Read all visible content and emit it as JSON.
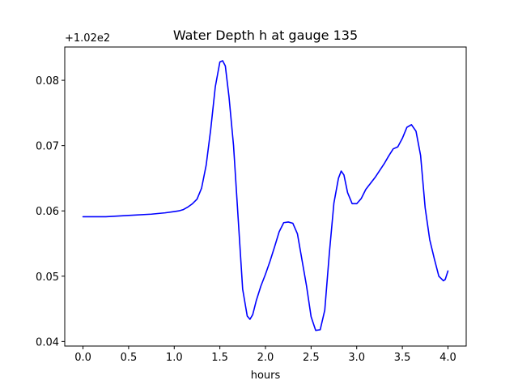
{
  "chart_data": {
    "type": "line",
    "title": "Water Depth h at gauge 135",
    "xlabel": "hours",
    "ylabel": "",
    "offset_label": "+1.02e2",
    "xlim": [
      -0.2,
      4.2
    ],
    "ylim": [
      0.0393,
      0.0851
    ],
    "x_ticks": [
      0.0,
      0.5,
      1.0,
      1.5,
      2.0,
      2.5,
      3.0,
      3.5,
      4.0
    ],
    "x_tick_labels": [
      "0.0",
      "0.5",
      "1.0",
      "1.5",
      "2.0",
      "2.5",
      "3.0",
      "3.5",
      "4.0"
    ],
    "y_ticks": [
      0.04,
      0.05,
      0.06,
      0.07,
      0.08
    ],
    "y_tick_labels": [
      "0.04",
      "0.05",
      "0.06",
      "0.07",
      "0.08"
    ],
    "grid": false,
    "series": [
      {
        "color": "#0000ff",
        "x": [
          0.0,
          0.1,
          0.25,
          0.5,
          0.75,
          0.9,
          1.0,
          1.05,
          1.1,
          1.15,
          1.2,
          1.25,
          1.3,
          1.35,
          1.4,
          1.45,
          1.5,
          1.53,
          1.56,
          1.6,
          1.65,
          1.7,
          1.75,
          1.8,
          1.83,
          1.86,
          1.9,
          1.95,
          2.0,
          2.05,
          2.1,
          2.15,
          2.2,
          2.25,
          2.3,
          2.35,
          2.4,
          2.45,
          2.5,
          2.55,
          2.6,
          2.65,
          2.7,
          2.75,
          2.8,
          2.83,
          2.86,
          2.9,
          2.95,
          3.0,
          3.05,
          3.1,
          3.2,
          3.3,
          3.35,
          3.4,
          3.45,
          3.5,
          3.55,
          3.6,
          3.65,
          3.7,
          3.75,
          3.8,
          3.85,
          3.9,
          3.95,
          3.97,
          4.0
        ],
        "y": [
          0.0591,
          0.0591,
          0.0591,
          0.0593,
          0.0595,
          0.0597,
          0.0599,
          0.06,
          0.0602,
          0.0606,
          0.0611,
          0.0618,
          0.0635,
          0.067,
          0.0725,
          0.079,
          0.0828,
          0.083,
          0.0822,
          0.0775,
          0.07,
          0.059,
          0.048,
          0.0439,
          0.0434,
          0.0441,
          0.0463,
          0.0485,
          0.0503,
          0.0523,
          0.0545,
          0.0568,
          0.0582,
          0.0583,
          0.0581,
          0.0565,
          0.0525,
          0.0485,
          0.0438,
          0.0417,
          0.0418,
          0.0448,
          0.0535,
          0.0612,
          0.065,
          0.0661,
          0.0655,
          0.0628,
          0.0611,
          0.0611,
          0.0619,
          0.0633,
          0.0651,
          0.0672,
          0.0684,
          0.0695,
          0.0698,
          0.0711,
          0.0728,
          0.0732,
          0.0722,
          0.0685,
          0.0605,
          0.0556,
          0.0527,
          0.05,
          0.0493,
          0.0495,
          0.0508
        ]
      }
    ]
  }
}
